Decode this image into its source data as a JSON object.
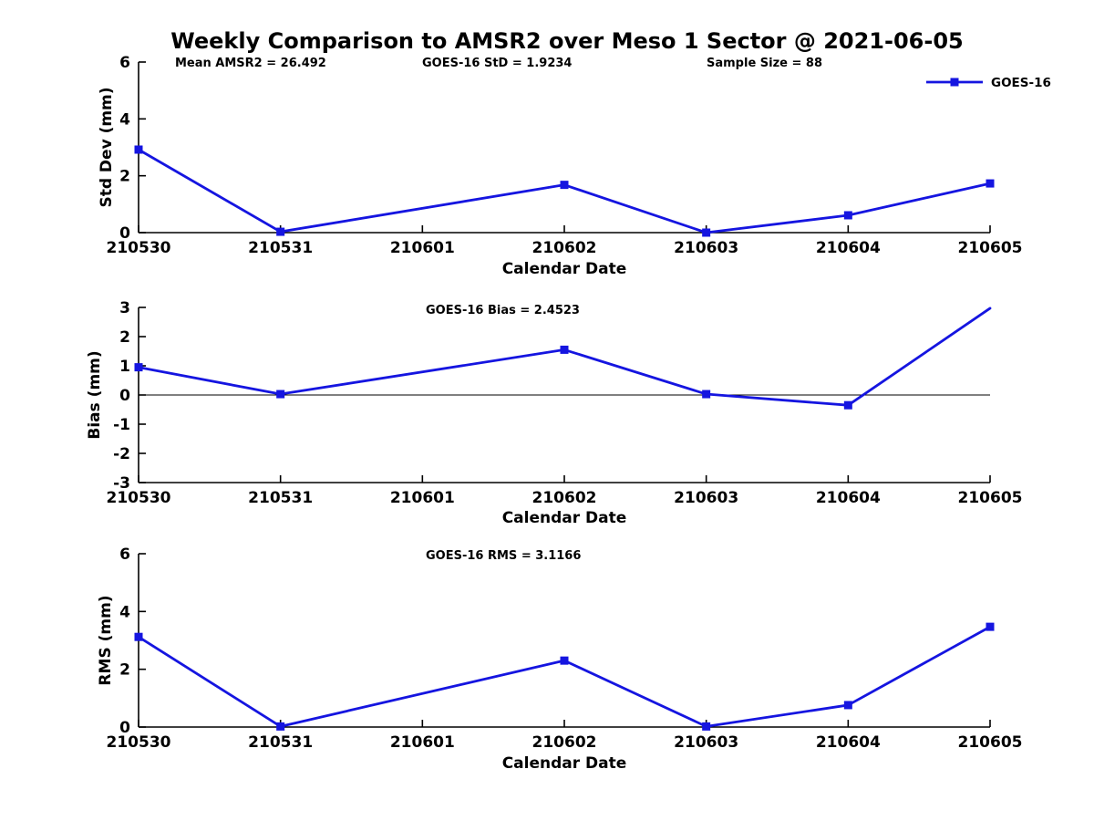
{
  "title": "Weekly Comparison to AMSR2 over Meso 1 Sector @ 2021-06-05",
  "colors": {
    "series": "#1515E0",
    "axis": "#000000",
    "background": "#FFFFFF",
    "text": "#000000"
  },
  "chart_data": [
    {
      "id": "std-dev",
      "type": "line",
      "annotations": [
        "Mean AMSR2 = 26.492",
        "GOES-16 StD = 1.9234",
        "Sample Size = 88"
      ],
      "xlabel": "Calendar Date",
      "ylabel": "Std Dev (mm)",
      "x_ticks": [
        "210530",
        "210531",
        "210601",
        "210602",
        "210603",
        "210604",
        "210605"
      ],
      "ylim": [
        0,
        6
      ],
      "yticks": [
        0,
        2,
        4,
        6
      ],
      "grid": false,
      "legend_label": "GOES-16",
      "legend_position": "top-right",
      "series": [
        {
          "name": "GOES-16",
          "x": [
            "210530",
            "210531",
            "210602",
            "210603",
            "210604",
            "210605"
          ],
          "y": [
            2.92,
            0.03,
            1.68,
            0.0,
            0.61,
            1.73
          ]
        }
      ]
    },
    {
      "id": "bias",
      "type": "line",
      "annotations": [
        "GOES-16 Bias  = 2.4523"
      ],
      "xlabel": "Calendar Date",
      "ylabel": "Bias (mm)",
      "x_ticks": [
        "210530",
        "210531",
        "210601",
        "210602",
        "210603",
        "210604",
        "210605"
      ],
      "ylim": [
        -3,
        3
      ],
      "yticks": [
        -3,
        -2,
        -1,
        0,
        1,
        2,
        3
      ],
      "grid": false,
      "zero_line": true,
      "series": [
        {
          "name": "GOES-16",
          "x": [
            "210530",
            "210531",
            "210602",
            "210603",
            "210604",
            "210605"
          ],
          "y": [
            0.95,
            0.03,
            1.55,
            0.03,
            -0.35,
            2.97
          ],
          "hidden_markers": [
            "210605"
          ]
        }
      ]
    },
    {
      "id": "rms",
      "type": "line",
      "annotations": [
        "GOES-16 RMS = 3.1166"
      ],
      "xlabel": "Calendar Date",
      "ylabel": "RMS (mm)",
      "x_ticks": [
        "210530",
        "210531",
        "210601",
        "210602",
        "210603",
        "210604",
        "210605"
      ],
      "ylim": [
        0,
        6
      ],
      "yticks": [
        0,
        2,
        4,
        6
      ],
      "grid": false,
      "series": [
        {
          "name": "GOES-16",
          "x": [
            "210530",
            "210531",
            "210602",
            "210603",
            "210604",
            "210605"
          ],
          "y": [
            3.12,
            0.02,
            2.3,
            0.02,
            0.76,
            3.47
          ]
        }
      ]
    }
  ]
}
